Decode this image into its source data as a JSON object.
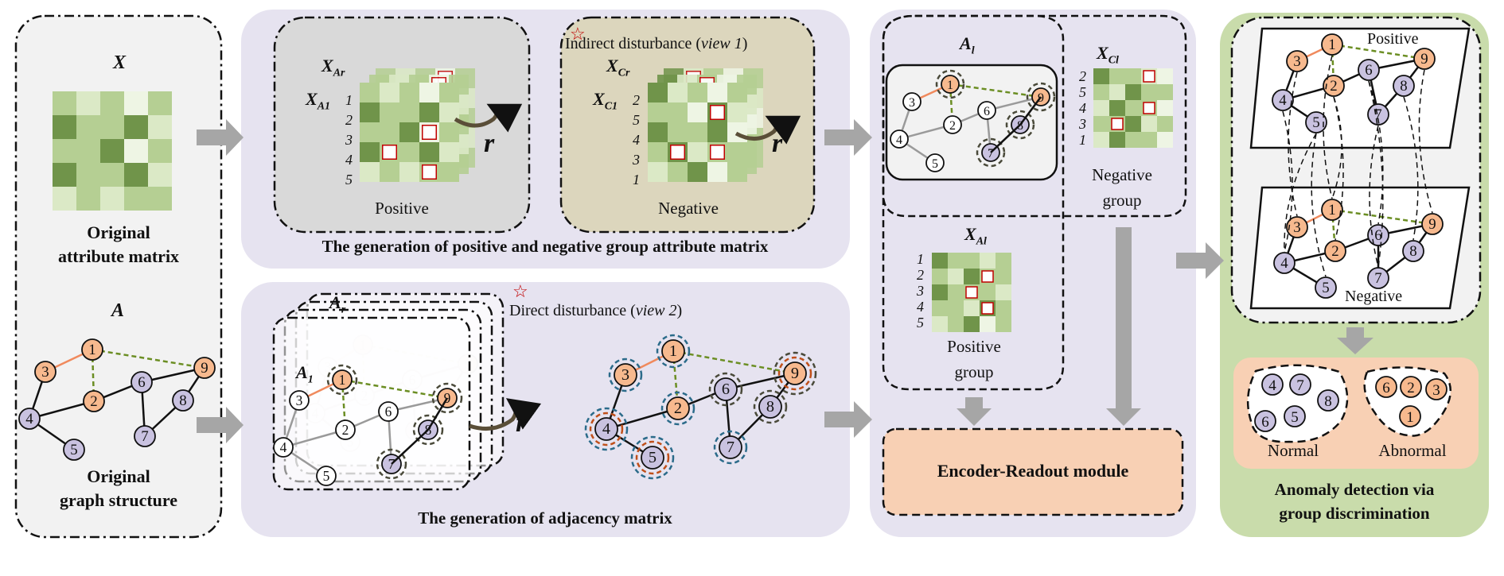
{
  "panel1": {
    "x_title": "X",
    "attr_caption_1": "Original",
    "attr_caption_2": "attribute matrix",
    "a_title": "A",
    "graph_caption_1": "Original",
    "graph_caption_2": "graph structure"
  },
  "panel2": {
    "positive_x_ar": "X",
    "positive_x_ar_sub": "Ar",
    "positive_x_a1": "X",
    "positive_x_a1_sub": "A1",
    "positive_rows": [
      "1",
      "2",
      "3",
      "4",
      "5"
    ],
    "negative_x_cr": "X",
    "negative_x_cr_sub": "Cr",
    "negative_x_c1": "X",
    "negative_x_c1_sub": "C1",
    "negative_rows": [
      "2",
      "5",
      "4",
      "3",
      "1"
    ],
    "r_symbol": "r",
    "positive_label": "Positive",
    "negative_label": "Negative",
    "indirect_label": "Indirect disturbance (",
    "indirect_view": "view 1",
    "indirect_close": ")",
    "section_caption": "The generation of  positive and negative group attribute matrix"
  },
  "panel3": {
    "a_r": "A",
    "a_r_sub": "r",
    "a_1": "A",
    "a_1_sub": "1",
    "direct_label": "Direct disturbance (",
    "direct_view": "view 2",
    "direct_close": ")",
    "r_symbol": "r",
    "section_caption": "The generation of adjacency matrix"
  },
  "panel4": {
    "a_l": "A",
    "a_l_sub": "l",
    "x_cl": "X",
    "x_cl_sub": "Cl",
    "neg_rows": [
      "2",
      "5",
      "4",
      "3",
      "1"
    ],
    "neg_group_1": "Negative",
    "neg_group_2": "group",
    "x_al": "X",
    "x_al_sub": "Al",
    "pos_rows": [
      "1",
      "2",
      "3",
      "4",
      "5"
    ],
    "pos_group_1": "Positive",
    "pos_group_2": "group",
    "encoder_label": "Encoder-Readout module"
  },
  "panel5": {
    "positive_label": "Positive",
    "negative_label": "Negative",
    "normal_nodes": [
      "4",
      "7",
      "8",
      "6",
      "5"
    ],
    "abnormal_nodes": [
      "6",
      "2",
      "3",
      "1"
    ],
    "normal_label": "Normal",
    "abnormal_label": "Abnormal",
    "caption_1": "Anomaly detection via",
    "caption_2": "group discrimination"
  },
  "graph_nodes": [
    "1",
    "2",
    "3",
    "4",
    "5",
    "6",
    "7",
    "8",
    "9"
  ],
  "colors": {
    "panel_grey": "#f2f2f2",
    "panel_lavender": "#e6e3f0",
    "panel_green": "#c9dcab",
    "panel_tan": "#dcd6bd",
    "panel_peach": "#f8d0b4",
    "node_orange": "#f7b98e",
    "node_lavender": "#c9c2e0",
    "matrix_dark": "#70944a",
    "matrix_mid": "#b5cf93",
    "matrix_light": "#dbe9c6",
    "matrix_pale": "#eef5e4",
    "arrow_grey": "#a6a6a6"
  }
}
